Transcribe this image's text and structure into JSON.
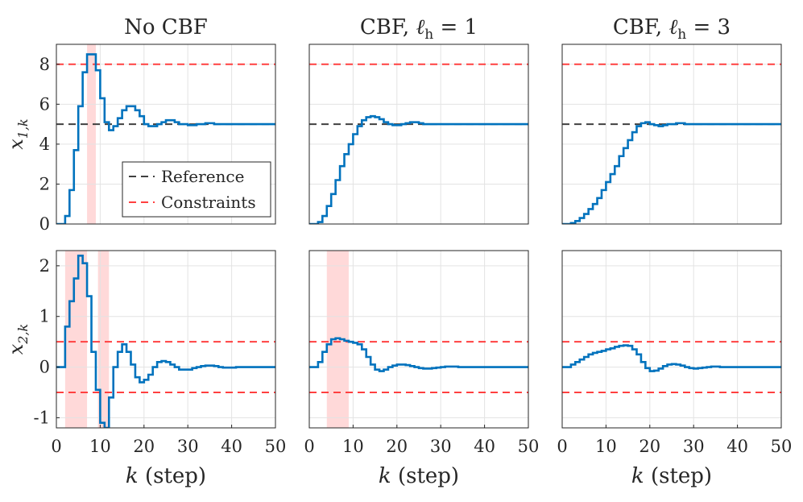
{
  "figure": {
    "xlabel_var": "k",
    "xlabel_unit": " (step)",
    "row_ylabels": [
      {
        "main": "x",
        "sub": "1,k"
      },
      {
        "main": "x",
        "sub": "2,k"
      }
    ],
    "column_titles": [
      {
        "base": "No CBF",
        "ell": ""
      },
      {
        "base": "CBF, ",
        "ell": "= 1"
      },
      {
        "base": "CBF, ",
        "ell": "= 3"
      }
    ],
    "ell_symbol": "ℓ",
    "ell_sub": "h",
    "legend": [
      "Reference",
      "Constraints"
    ]
  },
  "colors": {
    "trajectory": "#0072BD",
    "reference": "#404040",
    "constraint": "#FF4040",
    "violation": "#FFCCCC",
    "grid": "#E3E3E3"
  },
  "chart_data": [
    {
      "type": "line",
      "step": true,
      "row": 0,
      "col": 0,
      "xlim": [
        0,
        50
      ],
      "ylim": [
        0,
        9.0
      ],
      "xticks": [
        0,
        10,
        20,
        30,
        40,
        50
      ],
      "yticks": [
        0,
        2,
        4,
        6,
        8
      ],
      "reference": 5,
      "constraints": [
        8
      ],
      "violations": [
        [
          7,
          9
        ]
      ],
      "x": [
        0,
        1,
        2,
        3,
        4,
        5,
        6,
        7,
        8,
        9,
        10,
        11,
        12,
        13,
        14,
        15,
        16,
        17,
        18,
        19,
        20,
        21,
        22,
        23,
        24,
        25,
        26,
        27,
        28,
        29,
        30,
        31,
        32,
        33,
        34,
        35,
        36,
        37,
        38,
        39,
        40,
        41,
        42,
        43,
        44,
        45,
        46,
        47,
        48,
        49,
        50
      ],
      "y": [
        0,
        0,
        0.4,
        1.7,
        3.7,
        5.9,
        7.6,
        8.5,
        8.5,
        7.7,
        6.3,
        5.1,
        4.7,
        4.9,
        5.3,
        5.7,
        5.9,
        5.9,
        5.7,
        5.4,
        5.0,
        4.9,
        4.9,
        5.0,
        5.1,
        5.2,
        5.2,
        5.1,
        5.0,
        5.0,
        4.95,
        4.95,
        5.0,
        5.0,
        5.05,
        5.05,
        5.0,
        5.0,
        5.0,
        5.0,
        5.0,
        5.0,
        5.0,
        5.0,
        5.0,
        5.0,
        5.0,
        5.0,
        5.0,
        5.0,
        5.0
      ]
    },
    {
      "type": "line",
      "step": true,
      "row": 0,
      "col": 1,
      "xlim": [
        0,
        50
      ],
      "ylim": [
        0,
        9.0
      ],
      "xticks": [
        0,
        10,
        20,
        30,
        40,
        50
      ],
      "yticks": [
        0,
        2,
        4,
        6,
        8
      ],
      "reference": 5,
      "constraints": [
        8
      ],
      "violations": [],
      "x": [
        0,
        1,
        2,
        3,
        4,
        5,
        6,
        7,
        8,
        9,
        10,
        11,
        12,
        13,
        14,
        15,
        16,
        17,
        18,
        19,
        20,
        21,
        22,
        23,
        24,
        25,
        26,
        27,
        28,
        29,
        30,
        31,
        32,
        33,
        34,
        35,
        36,
        37,
        38,
        39,
        40,
        41,
        42,
        43,
        44,
        45,
        46,
        47,
        48,
        49,
        50
      ],
      "y": [
        0,
        0,
        0.1,
        0.4,
        0.9,
        1.5,
        2.2,
        2.9,
        3.5,
        4.0,
        4.5,
        4.9,
        5.2,
        5.35,
        5.4,
        5.35,
        5.25,
        5.1,
        5.0,
        4.95,
        4.95,
        5.0,
        5.05,
        5.1,
        5.1,
        5.05,
        5.0,
        5.0,
        5.0,
        5.0,
        5.0,
        5.0,
        5.0,
        5.0,
        5.0,
        5.0,
        5.0,
        5.0,
        5.0,
        5.0,
        5.0,
        5.0,
        5.0,
        5.0,
        5.0,
        5.0,
        5.0,
        5.0,
        5.0,
        5.0,
        5.0
      ]
    },
    {
      "type": "line",
      "step": true,
      "row": 0,
      "col": 2,
      "xlim": [
        0,
        50
      ],
      "ylim": [
        0,
        9.0
      ],
      "xticks": [
        0,
        10,
        20,
        30,
        40,
        50
      ],
      "yticks": [
        0,
        2,
        4,
        6,
        8
      ],
      "reference": 5,
      "constraints": [
        8
      ],
      "violations": [],
      "x": [
        0,
        1,
        2,
        3,
        4,
        5,
        6,
        7,
        8,
        9,
        10,
        11,
        12,
        13,
        14,
        15,
        16,
        17,
        18,
        19,
        20,
        21,
        22,
        23,
        24,
        25,
        26,
        27,
        28,
        29,
        30,
        31,
        32,
        33,
        34,
        35,
        36,
        37,
        38,
        39,
        40,
        41,
        42,
        43,
        44,
        45,
        46,
        47,
        48,
        49,
        50
      ],
      "y": [
        0,
        0,
        0.05,
        0.15,
        0.3,
        0.5,
        0.75,
        1.0,
        1.3,
        1.7,
        2.1,
        2.5,
        2.9,
        3.4,
        3.8,
        4.2,
        4.6,
        4.9,
        5.05,
        5.1,
        5.0,
        4.95,
        4.9,
        4.95,
        5.0,
        5.0,
        5.05,
        5.05,
        5.0,
        5.0,
        5.0,
        5.0,
        5.0,
        5.0,
        5.0,
        5.0,
        5.0,
        5.0,
        5.0,
        5.0,
        5.0,
        5.0,
        5.0,
        5.0,
        5.0,
        5.0,
        5.0,
        5.0,
        5.0,
        5.0,
        5.0
      ]
    },
    {
      "type": "line",
      "step": true,
      "row": 1,
      "col": 0,
      "xlim": [
        0,
        50
      ],
      "ylim": [
        -1.2,
        2.3
      ],
      "xticks": [
        0,
        10,
        20,
        30,
        40,
        50
      ],
      "yticks": [
        -1,
        0,
        1,
        2
      ],
      "reference": null,
      "constraints": [
        0.5,
        -0.5
      ],
      "violations": [
        [
          2,
          7
        ],
        [
          9.5,
          12
        ]
      ],
      "x": [
        0,
        1,
        2,
        3,
        4,
        5,
        6,
        7,
        8,
        9,
        10,
        11,
        12,
        13,
        14,
        15,
        16,
        17,
        18,
        19,
        20,
        21,
        22,
        23,
        24,
        25,
        26,
        27,
        28,
        29,
        30,
        31,
        32,
        33,
        34,
        35,
        36,
        37,
        38,
        39,
        40,
        41,
        42,
        43,
        44,
        45,
        46,
        47,
        48,
        49,
        50
      ],
      "y": [
        0,
        0,
        0.8,
        1.3,
        1.75,
        2.2,
        2.05,
        1.4,
        0.3,
        -0.45,
        -1.1,
        -1.2,
        -0.6,
        0.0,
        0.3,
        0.45,
        0.3,
        0.05,
        -0.2,
        -0.3,
        -0.25,
        -0.15,
        0.0,
        0.1,
        0.12,
        0.1,
        0.05,
        0.0,
        -0.05,
        -0.05,
        -0.05,
        -0.02,
        0.0,
        0.02,
        0.03,
        0.03,
        0.02,
        0.0,
        -0.01,
        -0.01,
        -0.01,
        0.0,
        0.0,
        0.0,
        0.0,
        0.0,
        0.0,
        0.0,
        0.0,
        0.0,
        0.0
      ]
    },
    {
      "type": "line",
      "step": true,
      "row": 1,
      "col": 1,
      "xlim": [
        0,
        50
      ],
      "ylim": [
        -1.2,
        2.3
      ],
      "xticks": [
        0,
        10,
        20,
        30,
        40,
        50
      ],
      "yticks": [
        -1,
        0,
        1,
        2
      ],
      "reference": null,
      "constraints": [
        0.5,
        -0.5
      ],
      "violations": [
        [
          4,
          9
        ]
      ],
      "x": [
        0,
        1,
        2,
        3,
        4,
        5,
        6,
        7,
        8,
        9,
        10,
        11,
        12,
        13,
        14,
        15,
        16,
        17,
        18,
        19,
        20,
        21,
        22,
        23,
        24,
        25,
        26,
        27,
        28,
        29,
        30,
        31,
        32,
        33,
        34,
        35,
        36,
        37,
        38,
        39,
        40,
        41,
        42,
        43,
        44,
        45,
        46,
        47,
        48,
        49,
        50
      ],
      "y": [
        0,
        0,
        0.1,
        0.3,
        0.45,
        0.55,
        0.57,
        0.55,
        0.52,
        0.5,
        0.48,
        0.45,
        0.35,
        0.2,
        0.05,
        -0.05,
        -0.08,
        -0.05,
        0.0,
        0.03,
        0.05,
        0.05,
        0.04,
        0.02,
        0.0,
        -0.02,
        -0.03,
        -0.03,
        -0.02,
        -0.01,
        0.0,
        0.01,
        0.01,
        0.01,
        0.0,
        0.0,
        0.0,
        0.0,
        0.0,
        0.0,
        0.0,
        0.0,
        0.0,
        0.0,
        0.0,
        0.0,
        0.0,
        0.0,
        0.0,
        0.0,
        0.0
      ]
    },
    {
      "type": "line",
      "step": true,
      "row": 1,
      "col": 2,
      "xlim": [
        0,
        50
      ],
      "ylim": [
        -1.2,
        2.3
      ],
      "xticks": [
        0,
        10,
        20,
        30,
        40,
        50
      ],
      "yticks": [
        -1,
        0,
        1,
        2
      ],
      "reference": null,
      "constraints": [
        0.5,
        -0.5
      ],
      "violations": [],
      "x": [
        0,
        1,
        2,
        3,
        4,
        5,
        6,
        7,
        8,
        9,
        10,
        11,
        12,
        13,
        14,
        15,
        16,
        17,
        18,
        19,
        20,
        21,
        22,
        23,
        24,
        25,
        26,
        27,
        28,
        29,
        30,
        31,
        32,
        33,
        34,
        35,
        36,
        37,
        38,
        39,
        40,
        41,
        42,
        43,
        44,
        45,
        46,
        47,
        48,
        49,
        50
      ],
      "y": [
        0,
        0,
        0.05,
        0.1,
        0.15,
        0.2,
        0.25,
        0.28,
        0.3,
        0.32,
        0.35,
        0.37,
        0.4,
        0.42,
        0.43,
        0.42,
        0.35,
        0.25,
        0.1,
        -0.02,
        -0.08,
        -0.07,
        -0.03,
        0.02,
        0.05,
        0.06,
        0.05,
        0.03,
        0.0,
        -0.02,
        -0.03,
        -0.02,
        -0.01,
        0.0,
        0.01,
        0.01,
        0.0,
        0.0,
        0.0,
        0.0,
        0.0,
        0.0,
        0.0,
        0.0,
        0.0,
        0.0,
        0.0,
        0.0,
        0.0,
        0.0,
        0.0
      ]
    }
  ]
}
